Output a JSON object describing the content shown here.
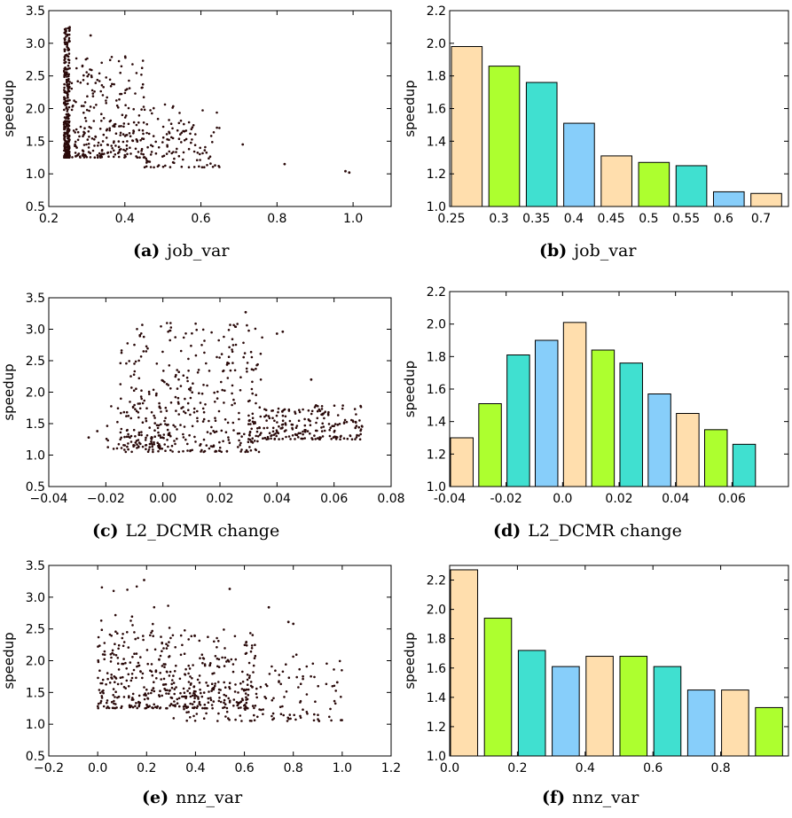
{
  "colors": {
    "bar_cycle": [
      "#ffdead",
      "#adff2f",
      "#40e0d0",
      "#87cefa"
    ],
    "point": "#2a0a0a"
  },
  "chart_data": [
    {
      "id": "a",
      "type": "scatter",
      "caption": {
        "tag": "(a)",
        "text": "job_var"
      },
      "xlabel": "",
      "ylabel": "speedup",
      "xlim": [
        0.2,
        1.1
      ],
      "ylim": [
        0.5,
        3.5
      ],
      "xticks": [
        "0.2",
        "0.4",
        "0.6",
        "0.8",
        "1.0"
      ],
      "yticks": [
        "0.5",
        "1.0",
        "1.5",
        "2.0",
        "2.5",
        "3.0",
        "3.5"
      ],
      "grid": false,
      "points": {
        "generator": "cluster",
        "clusters": [
          {
            "n": 300,
            "x": [
              0.24,
              0.255
            ],
            "y": [
              1.25,
              3.25
            ]
          },
          {
            "n": 260,
            "x": [
              0.26,
              0.45
            ],
            "y": [
              1.25,
              2.8
            ]
          },
          {
            "n": 120,
            "x": [
              0.45,
              0.65
            ],
            "y": [
              1.1,
              2.1
            ]
          }
        ],
        "outliers": [
          [
            0.71,
            1.45
          ],
          [
            0.82,
            1.15
          ],
          [
            0.98,
            1.04
          ],
          [
            0.99,
            1.02
          ],
          [
            0.31,
            3.12
          ]
        ]
      }
    },
    {
      "id": "b",
      "type": "bar",
      "caption": {
        "tag": "(b)",
        "text": "job_var"
      },
      "xlabel": "",
      "ylabel": "speedup",
      "ylim": [
        1.0,
        2.2
      ],
      "yticks": [
        "1.0",
        "1.2",
        "1.4",
        "1.6",
        "1.8",
        "2.0",
        "2.2"
      ],
      "categories": [
        "0.25",
        "0.3",
        "0.35",
        "0.4",
        "0.45",
        "0.5",
        "0.55",
        "0.6",
        "0.7"
      ],
      "values": [
        1.98,
        1.86,
        1.76,
        1.51,
        1.31,
        1.27,
        1.25,
        1.09,
        1.08
      ]
    },
    {
      "id": "c",
      "type": "scatter",
      "caption": {
        "tag": "(c)",
        "text": "L2_DCMR change"
      },
      "xlabel": "",
      "ylabel": "speedup",
      "xlim": [
        -0.04,
        0.08
      ],
      "ylim": [
        0.5,
        3.5
      ],
      "xticks": [
        "−0.04",
        "−0.02",
        "0.00",
        "0.02",
        "0.04",
        "0.06",
        "0.08"
      ],
      "yticks": [
        "0.5",
        "1.0",
        "1.5",
        "2.0",
        "2.5",
        "3.0",
        "3.5"
      ],
      "grid": false,
      "points": {
        "generator": "cluster",
        "clusters": [
          {
            "n": 380,
            "x": [
              -0.015,
              0.035
            ],
            "y": [
              1.05,
              3.1
            ]
          },
          {
            "n": 220,
            "x": [
              0.03,
              0.07
            ],
            "y": [
              1.25,
              1.8
            ]
          },
          {
            "n": 60,
            "x": [
              -0.02,
              0.0
            ],
            "y": [
              1.1,
              1.9
            ]
          }
        ],
        "outliers": [
          [
            -0.026,
            1.28
          ],
          [
            -0.023,
            1.38
          ],
          [
            0.04,
            2.93
          ],
          [
            0.042,
            2.96
          ],
          [
            0.052,
            2.2
          ],
          [
            0.029,
            3.27
          ]
        ]
      }
    },
    {
      "id": "d",
      "type": "bar",
      "caption": {
        "tag": "(d)",
        "text": "L2_DCMR change"
      },
      "xlabel": "",
      "ylabel": "speedup",
      "ylim": [
        1.0,
        2.2
      ],
      "yticks": [
        "1.0",
        "1.2",
        "1.4",
        "1.6",
        "1.8",
        "2.0",
        "2.2"
      ],
      "xlim": [
        -0.04,
        0.08
      ],
      "xticks": [
        "-0.04",
        "-0.02",
        "0.0",
        "0.02",
        "0.04",
        "0.06"
      ],
      "x": [
        -0.04,
        -0.03,
        -0.02,
        -0.01,
        0.0,
        0.01,
        0.02,
        0.03,
        0.04,
        0.05,
        0.06
      ],
      "values": [
        1.3,
        1.51,
        1.81,
        1.9,
        2.01,
        1.84,
        1.76,
        1.57,
        1.45,
        1.35,
        1.26
      ]
    },
    {
      "id": "e",
      "type": "scatter",
      "caption": {
        "tag": "(e)",
        "text": "nnz_var"
      },
      "xlabel": "",
      "ylabel": "speedup",
      "xlim": [
        -0.2,
        1.2
      ],
      "ylim": [
        0.5,
        3.5
      ],
      "xticks": [
        "−0.2",
        "0.0",
        "0.2",
        "0.4",
        "0.6",
        "0.8",
        "1.0",
        "1.2"
      ],
      "yticks": [
        "0.5",
        "1.0",
        "1.5",
        "2.0",
        "2.5",
        "3.0",
        "3.5"
      ],
      "grid": false,
      "points": {
        "generator": "cluster",
        "clusters": [
          {
            "n": 380,
            "x": [
              0.0,
              0.65
            ],
            "y": [
              1.25,
              2.5
            ]
          },
          {
            "n": 160,
            "x": [
              0.3,
              1.0
            ],
            "y": [
              1.05,
              2.1
            ]
          },
          {
            "n": 60,
            "x": [
              0.0,
              0.3
            ],
            "y": [
              1.4,
              3.2
            ]
          }
        ],
        "outliers": [
          [
            0.19,
            3.27
          ],
          [
            0.54,
            3.13
          ],
          [
            0.7,
            2.84
          ],
          [
            0.78,
            2.61
          ],
          [
            0.8,
            2.58
          ],
          [
            0.98,
            1.66
          ]
        ]
      }
    },
    {
      "id": "f",
      "type": "bar",
      "caption": {
        "tag": "(f)",
        "text": "nnz_var"
      },
      "xlabel": "",
      "ylabel": "speedup",
      "ylim": [
        1.0,
        2.3
      ],
      "yticks": [
        "1.0",
        "1.2",
        "1.4",
        "1.6",
        "1.8",
        "2.0",
        "2.2"
      ],
      "xlim": [
        0.0,
        1.0
      ],
      "xticks": [
        "0.0",
        "0.2",
        "0.4",
        "0.6",
        "0.8"
      ],
      "x": [
        0.0,
        0.1,
        0.2,
        0.3,
        0.4,
        0.5,
        0.6,
        0.7,
        0.8,
        0.9
      ],
      "values": [
        2.27,
        1.94,
        1.72,
        1.61,
        1.68,
        1.68,
        1.61,
        1.45,
        1.45,
        1.33
      ]
    }
  ]
}
